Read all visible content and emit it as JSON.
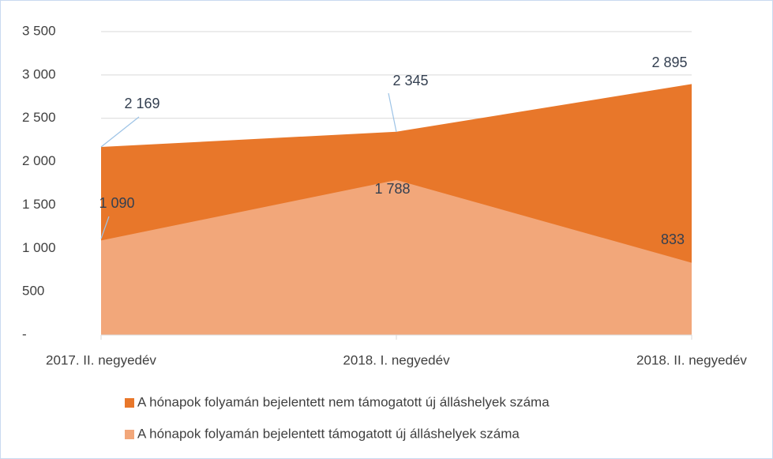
{
  "chart_data": {
    "type": "area",
    "categories": [
      "2017. II. negyedév",
      "2018. I. negyedév",
      "2018. II. negyedév"
    ],
    "series": [
      {
        "name": "A hónapok folyamán bejelentett nem támogatott új álláshelyek száma",
        "color": "#e8772a",
        "values": [
          2169,
          2345,
          2895
        ],
        "value_labels": [
          "2 169",
          "2 345",
          "2 895"
        ]
      },
      {
        "name": "A hónapok folyamán bejelentett támogatott új álláshelyek száma",
        "color": "#f2a77a",
        "values": [
          1090,
          1788,
          833
        ],
        "value_labels": [
          "1 090",
          "1 788",
          "833"
        ]
      }
    ],
    "ylim": [
      0,
      3500
    ],
    "yticks": [
      {
        "value": 0,
        "label": "-"
      },
      500,
      {
        "value": 1000,
        "label": "1 000"
      },
      {
        "value": 1500,
        "label": "1 500"
      },
      {
        "value": 2000,
        "label": "2 000"
      },
      {
        "value": 2500,
        "label": "2 500"
      },
      {
        "value": 3000,
        "label": "3 000"
      },
      {
        "value": 3500,
        "label": "3 500"
      }
    ],
    "grid": true,
    "legend": "bottom"
  }
}
